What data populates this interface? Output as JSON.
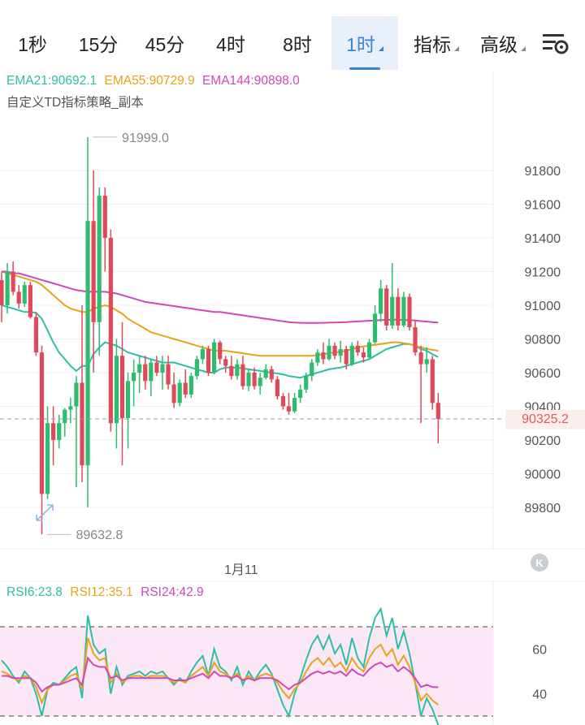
{
  "tabs": [
    {
      "label": "1秒",
      "active": false,
      "dropdown": false
    },
    {
      "label": "15分",
      "active": false,
      "dropdown": false
    },
    {
      "label": "45分",
      "active": false,
      "dropdown": false
    },
    {
      "label": "4时",
      "active": false,
      "dropdown": false
    },
    {
      "label": "8时",
      "active": false,
      "dropdown": false
    },
    {
      "label": "1时",
      "active": true,
      "dropdown": true
    },
    {
      "label": "指标",
      "active": false,
      "dropdown": true
    },
    {
      "label": "高级",
      "active": false,
      "dropdown": true
    }
  ],
  "settings_icon": "chart-settings-icon",
  "ema_legend": [
    {
      "text": "EMA21:90692.1",
      "color": "#2bbfa6"
    },
    {
      "text": "EMA55:90729.9",
      "color": "#e8a317"
    },
    {
      "text": "EMA144:90898.0",
      "color": "#d048b6"
    }
  ],
  "indicator_label": "自定义TD指标策略_副本",
  "price_axis": [
    "91800",
    "91600",
    "91400",
    "91200",
    "91000",
    "90800",
    "90600",
    "90400",
    "90200",
    "90000",
    "89800"
  ],
  "high_label": "91999.0",
  "low_label": "89632.8",
  "current_price": "90325.2",
  "date_label": "1月11",
  "rsi_legend": [
    {
      "text": "RSI6:23.8",
      "color": "#2bbfa6"
    },
    {
      "text": "RSI12:35.1",
      "color": "#e8a317"
    },
    {
      "text": "RSI24:42.9",
      "color": "#d048b6"
    }
  ],
  "rsi_axis": [
    "60",
    "40"
  ],
  "colors": {
    "up": "#2ebd6f",
    "down": "#e0495a",
    "ema21": "#2bbfa6",
    "ema55": "#e8a317",
    "ema144": "#d048b6"
  },
  "chart_data": {
    "type": "candlestick",
    "ylim": [
      89600,
      92050
    ],
    "candles": [
      [
        91150,
        91200,
        90900,
        91000
      ],
      [
        91000,
        91250,
        90950,
        91200
      ],
      [
        91200,
        91260,
        91060,
        91080
      ],
      [
        91080,
        91120,
        90980,
        91010
      ],
      [
        91010,
        91140,
        90990,
        91120
      ],
      [
        91120,
        91140,
        90920,
        90930
      ],
      [
        90930,
        90960,
        90700,
        90720
      ],
      [
        90720,
        90760,
        89640,
        89880
      ],
      [
        89880,
        90400,
        89850,
        90300
      ],
      [
        90300,
        90400,
        90050,
        90200
      ],
      [
        90200,
        90350,
        90150,
        90300
      ],
      [
        90300,
        90390,
        90220,
        90380
      ],
      [
        90380,
        90450,
        90300,
        90400
      ],
      [
        90400,
        90580,
        89920,
        90540
      ],
      [
        90540,
        91000,
        89950,
        90050
      ],
      [
        90050,
        91998,
        89800,
        91500
      ],
      [
        91500,
        91800,
        90600,
        90900
      ],
      [
        90900,
        91700,
        90700,
        91650
      ],
      [
        91650,
        91700,
        91200,
        91400
      ],
      [
        91400,
        91450,
        90250,
        90300
      ],
      [
        90300,
        90800,
        90150,
        90700
      ],
      [
        90700,
        90900,
        90050,
        90330
      ],
      [
        90330,
        90600,
        90150,
        90550
      ],
      [
        90550,
        90680,
        90400,
        90600
      ],
      [
        90600,
        90700,
        90480,
        90650
      ],
      [
        90650,
        90700,
        90500,
        90550
      ],
      [
        90550,
        90680,
        90460,
        90660
      ],
      [
        90660,
        90700,
        90580,
        90600
      ],
      [
        90600,
        90700,
        90500,
        90650
      ],
      [
        90650,
        90700,
        90500,
        90530
      ],
      [
        90530,
        90600,
        90390,
        90420
      ],
      [
        90420,
        90560,
        90400,
        90540
      ],
      [
        90540,
        90620,
        90450,
        90470
      ],
      [
        90470,
        90600,
        90450,
        90580
      ],
      [
        90580,
        90700,
        90560,
        90680
      ],
      [
        90680,
        90760,
        90650,
        90740
      ],
      [
        90740,
        90760,
        90580,
        90600
      ],
      [
        90600,
        90800,
        90590,
        90780
      ],
      [
        90780,
        90790,
        90650,
        90680
      ],
      [
        90680,
        90700,
        90600,
        90640
      ],
      [
        90640,
        90700,
        90560,
        90580
      ],
      [
        90580,
        90680,
        90560,
        90650
      ],
      [
        90650,
        90700,
        90500,
        90520
      ],
      [
        90520,
        90620,
        90490,
        90600
      ],
      [
        90600,
        90630,
        90500,
        90520
      ],
      [
        90520,
        90600,
        90470,
        90570
      ],
      [
        90570,
        90650,
        90560,
        90620
      ],
      [
        90620,
        90640,
        90540,
        90560
      ],
      [
        90560,
        90580,
        90440,
        90460
      ],
      [
        90460,
        90480,
        90380,
        90400
      ],
      [
        90400,
        90480,
        90350,
        90370
      ],
      [
        90370,
        90480,
        90360,
        90450
      ],
      [
        90450,
        90530,
        90420,
        90500
      ],
      [
        90500,
        90600,
        90480,
        90580
      ],
      [
        90580,
        90680,
        90550,
        90660
      ],
      [
        90660,
        90740,
        90640,
        90720
      ],
      [
        90720,
        90780,
        90650,
        90680
      ],
      [
        90680,
        90800,
        90670,
        90760
      ],
      [
        90760,
        90780,
        90680,
        90700
      ],
      [
        90700,
        90790,
        90660,
        90740
      ],
      [
        90740,
        90760,
        90620,
        90650
      ],
      [
        90650,
        90780,
        90640,
        90760
      ],
      [
        90760,
        90790,
        90700,
        90720
      ],
      [
        90720,
        90750,
        90660,
        90690
      ],
      [
        90690,
        90800,
        90680,
        90780
      ],
      [
        90780,
        91000,
        90770,
        90950
      ],
      [
        90950,
        91150,
        90900,
        91100
      ],
      [
        91100,
        91120,
        90850,
        90880
      ],
      [
        90880,
        91250,
        90860,
        91050
      ],
      [
        91050,
        91100,
        90850,
        90880
      ],
      [
        90880,
        91080,
        90870,
        91050
      ],
      [
        91050,
        91070,
        90850,
        90870
      ],
      [
        90870,
        90910,
        90700,
        90720
      ],
      [
        90720,
        90760,
        90300,
        90650
      ],
      [
        90650,
        90750,
        90600,
        90680
      ],
      [
        90680,
        90700,
        90380,
        90420
      ],
      [
        90420,
        90480,
        90180,
        90325
      ]
    ],
    "series": [
      {
        "name": "EMA21",
        "values": [
          91000,
          90990,
          90980,
          90970,
          90960,
          90960,
          90955,
          90920,
          90850,
          90780,
          90720,
          90680,
          90640,
          90610,
          90640,
          90640,
          90710,
          90750,
          90780,
          90770,
          90760,
          90740,
          90720,
          90710,
          90700,
          90690,
          90680,
          90670,
          90660,
          90660,
          90660,
          90650,
          90640,
          90630,
          90620,
          90610,
          90600,
          90600,
          90620,
          90630,
          90630,
          90630,
          90625,
          90620,
          90615,
          90610,
          90605,
          90600,
          90595,
          90590,
          90580,
          90575,
          90570,
          90580,
          90590,
          90600,
          90610,
          90620,
          90625,
          90630,
          90640,
          90650,
          90660,
          90670,
          90680,
          90700,
          90720,
          90740,
          90750,
          90760,
          90770,
          90770,
          90760,
          90740,
          90730,
          90710,
          90692
        ]
      },
      {
        "name": "EMA55",
        "values": [
          91200,
          91190,
          91180,
          91170,
          91160,
          91150,
          91140,
          91120,
          91090,
          91060,
          91030,
          91000,
          90980,
          90970,
          90960,
          90960,
          90980,
          90990,
          91000,
          90990,
          90970,
          90950,
          90920,
          90900,
          90880,
          90860,
          90840,
          90830,
          90820,
          90810,
          90800,
          90790,
          90780,
          90770,
          90760,
          90750,
          90740,
          90730,
          90730,
          90730,
          90725,
          90720,
          90715,
          90710,
          90705,
          90700,
          90700,
          90700,
          90700,
          90700,
          90700,
          90700,
          90700,
          90700,
          90700,
          90705,
          90710,
          90715,
          90720,
          90725,
          90730,
          90740,
          90750,
          90755,
          90760,
          90765,
          90770,
          90775,
          90780,
          90780,
          90775,
          90770,
          90760,
          90750,
          90742,
          90735,
          90730
        ]
      },
      {
        "name": "EMA144",
        "values": [
          91200,
          91200,
          91190,
          91190,
          91180,
          91170,
          91160,
          91150,
          91140,
          91130,
          91120,
          91110,
          91100,
          91090,
          91085,
          91080,
          91080,
          91080,
          91080,
          91075,
          91070,
          91060,
          91050,
          91040,
          91030,
          91020,
          91015,
          91010,
          91005,
          91000,
          90995,
          90990,
          90985,
          90980,
          90975,
          90970,
          90965,
          90960,
          90960,
          90955,
          90950,
          90945,
          90940,
          90935,
          90930,
          90925,
          90920,
          90915,
          90910,
          90905,
          90900,
          90898,
          90896,
          90895,
          90895,
          90895,
          90896,
          90897,
          90898,
          90899,
          90900,
          90902,
          90904,
          90906,
          90908,
          90910,
          90912,
          90913,
          90914,
          90914,
          90913,
          90912,
          90910,
          90906,
          90903,
          90900,
          90898
        ]
      }
    ],
    "rsi": {
      "ylim": [
        30,
        80
      ],
      "levels": [
        70,
        30
      ],
      "series": [
        {
          "name": "RSI6",
          "values": [
            55,
            52,
            48,
            45,
            50,
            47,
            40,
            30,
            42,
            45,
            44,
            47,
            50,
            52,
            38,
            75,
            62,
            58,
            60,
            40,
            52,
            44,
            48,
            49,
            50,
            48,
            50,
            49,
            50,
            47,
            44,
            47,
            45,
            50,
            54,
            57,
            48,
            60,
            52,
            50,
            46,
            52,
            44,
            50,
            46,
            50,
            53,
            49,
            42,
            35,
            30,
            40,
            47,
            55,
            62,
            66,
            60,
            66,
            58,
            62,
            53,
            65,
            56,
            52,
            65,
            74,
            78,
            66,
            74,
            60,
            68,
            58,
            45,
            30,
            38,
            33,
            23.8
          ]
        },
        {
          "name": "RSI12",
          "values": [
            50,
            49,
            47,
            46,
            48,
            47,
            43,
            36,
            42,
            44,
            44,
            46,
            48,
            49,
            42,
            65,
            58,
            55,
            56,
            45,
            49,
            45,
            47,
            48,
            48,
            47,
            48,
            48,
            48,
            47,
            45,
            46,
            45,
            48,
            50,
            52,
            48,
            54,
            50,
            49,
            47,
            49,
            46,
            48,
            46,
            48,
            49,
            48,
            45,
            41,
            38,
            42,
            45,
            50,
            54,
            56,
            53,
            56,
            52,
            54,
            50,
            56,
            52,
            50,
            56,
            60,
            62,
            57,
            60,
            53,
            57,
            52,
            45,
            37,
            40,
            37,
            35.1
          ]
        },
        {
          "name": "RSI24",
          "values": [
            48,
            48,
            47,
            47,
            47,
            47,
            45,
            41,
            43,
            44,
            44,
            45,
            46,
            47,
            44,
            56,
            53,
            52,
            52,
            47,
            48,
            46,
            47,
            47,
            47,
            47,
            47,
            47,
            47,
            47,
            46,
            46,
            46,
            47,
            48,
            49,
            47,
            50,
            48,
            48,
            47,
            48,
            46,
            47,
            46,
            47,
            47,
            47,
            46,
            44,
            42,
            44,
            45,
            47,
            49,
            50,
            49,
            50,
            49,
            50,
            48,
            51,
            49,
            48,
            51,
            53,
            54,
            52,
            53,
            50,
            52,
            50,
            47,
            43,
            44,
            43,
            42.9
          ]
        }
      ]
    }
  }
}
